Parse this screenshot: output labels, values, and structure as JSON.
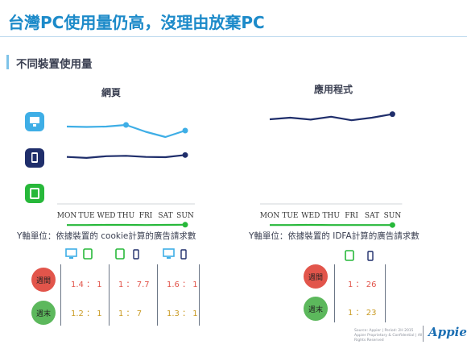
{
  "header": {
    "title": "台灣PC使用量仍高，沒理由放棄PC",
    "subtitle": "不同裝置使用量"
  },
  "colors": {
    "pc": "#3eaee6",
    "tablet": "#1f2e6b",
    "phone": "#27b83a",
    "weekday": "#e2554b",
    "weekend": "#5cb85c"
  },
  "chart_data": [
    {
      "type": "line",
      "title": "網頁",
      "categories": [
        "MON",
        "TUE",
        "WED",
        "THU",
        "FRI",
        "SAT",
        "SUN"
      ],
      "series": [
        {
          "icon": "desktop-icon",
          "values": [
            0.86,
            0.85,
            0.86,
            0.9,
            0.73,
            0.6,
            0.76
          ]
        },
        {
          "icon": "tablet-icon",
          "values": [
            0.47,
            0.42,
            0.51,
            0.53,
            0.47,
            0.46,
            0.57
          ]
        },
        {
          "icon": "phone-icon",
          "values": [
            0.02,
            0.02,
            0.025,
            0.025,
            0.02,
            0.025,
            0.03
          ]
        }
      ],
      "ylabel": "Y軸單位：依據裝置的 cookie計算的廣告請求數"
    },
    {
      "type": "line",
      "title": "應用程式",
      "categories": [
        "MON",
        "TUE",
        "WED",
        "THU",
        "FRI",
        "SAT",
        "SUN"
      ],
      "series": [
        {
          "icon": "tablet-icon",
          "values": [
            0.9,
            0.95,
            0.89,
            0.98,
            0.87,
            0.95,
            1.06
          ]
        },
        {
          "icon": "phone-icon",
          "values": [
            0.02,
            0.02,
            0.025,
            0.02,
            0.02,
            0.02,
            0.02
          ]
        }
      ],
      "ylabel": "Y軸單位：依據裝置的 IDFA計算的廣告請求數"
    },
    {
      "type": "table",
      "row_labels": [
        "週間",
        "週末"
      ],
      "left_groups": [
        {
          "icons": [
            "desktop-icon",
            "phone-icon"
          ],
          "weekday": "1.4 ： 1",
          "weekend": "1.2 ： 1"
        },
        {
          "icons": [
            "phone-icon",
            "tablet-icon"
          ],
          "weekday": "1 ： 7.7",
          "weekend": "1 ： 7"
        },
        {
          "icons": [
            "desktop-icon",
            "tablet-icon"
          ],
          "weekday": "1.6 ： 1",
          "weekend": "1.3 ： 1"
        }
      ],
      "right_group": {
        "icons": [
          "phone-icon",
          "tablet-icon"
        ],
        "weekday": "1 ： 26",
        "weekend": "1 ： 23"
      }
    }
  ],
  "footer": {
    "source": "Source: Appier | Period: 2H 2015",
    "confidential": "Appier Proprietary & Confidential | All Rights Reserved",
    "logo": "Appier"
  }
}
